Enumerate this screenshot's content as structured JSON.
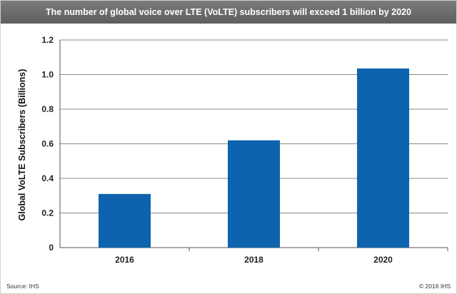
{
  "title": "The number of global voice over LTE (VoLTE) subscribers will exceed 1 billion by 2020",
  "colors": {
    "bar": "#0E63AE",
    "title_bg": "#6b6b6b",
    "grid": "#8a8a8a"
  },
  "chart_data": {
    "type": "bar",
    "categories": [
      "2016",
      "2018",
      "2020"
    ],
    "values": [
      0.31,
      0.62,
      1.035
    ],
    "title": "The number of global voice over LTE (VoLTE) subscribers will exceed 1 billion by 2020",
    "xlabel": "",
    "ylabel": "Global VoLTE Subscribers (Billions)",
    "ylim": [
      0,
      1.2
    ],
    "yticks": [
      "0",
      "0.2",
      "0.4",
      "0.6",
      "0.8",
      "1.0",
      "1.2"
    ],
    "grid": true,
    "legend": "none"
  },
  "footer": {
    "source": "Source: IHS",
    "copyright": "© 2016 IHS"
  }
}
